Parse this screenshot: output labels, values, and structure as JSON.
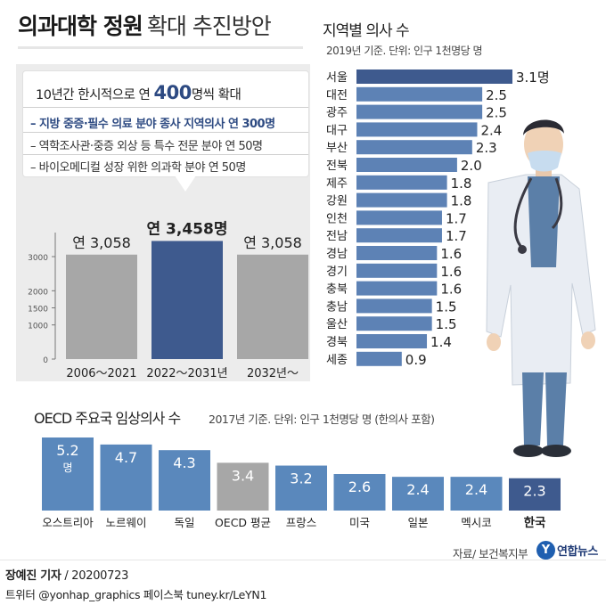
{
  "title": {
    "bold": "의과대학 정원",
    "normal": "확대 추진방안"
  },
  "callout": {
    "head_pre": "10년간 한시적으로 연 ",
    "head_num": "400",
    "head_post": "명씩 확대",
    "items": [
      "– 지방 중증·필수 의료 분야 종사 지역의사 연 300명",
      "– 역학조사관·중증 외상 등 특수 전문 분야 연 50명",
      "– 바이오메디컬 성장 위한 의과학 분야 연 50명"
    ]
  },
  "regional": {
    "title": "지역별 의사 수",
    "subtitle": "2019년 기준. 단위: 인구 1천명당 명"
  },
  "oecd": {
    "title": "OECD 주요국 임상의사 수",
    "subtitle": "2017년 기준. 단위: 인구 1천명당 명 (한의사 포함)"
  },
  "source": "자료/ 보건복지부",
  "logo": {
    "mark": "Y",
    "text": "연합뉴스"
  },
  "reporter": {
    "name": "장예진 기자",
    "date": " / 20200723"
  },
  "sns": "트위터 @yonhap_graphics  페이스북 tuney.kr/LeYN1",
  "colors": {
    "highlight": "#3e5a8e",
    "gray": "#a7a7a7",
    "blue": "#5a88bc",
    "bar_light": "#5d82b5"
  },
  "chart_data": [
    {
      "type": "bar",
      "categories": [
        "2006～2021",
        "2022～2031년",
        "2032년～"
      ],
      "values": [
        3058,
        3458,
        3058
      ],
      "value_labels": [
        "연 3,058",
        "연 3,458명",
        "연 3,058"
      ],
      "yticks": [
        0,
        1000,
        1500,
        2000,
        3000
      ],
      "ylim": [
        0,
        3600
      ],
      "highlight_index": 1
    },
    {
      "type": "bar",
      "orientation": "horizontal",
      "categories": [
        "서울",
        "대전",
        "광주",
        "대구",
        "부산",
        "전북",
        "제주",
        "강원",
        "인천",
        "전남",
        "경남",
        "경기",
        "충북",
        "충남",
        "울산",
        "경북",
        "세종"
      ],
      "values": [
        3.1,
        2.5,
        2.5,
        2.4,
        2.3,
        2.0,
        1.8,
        1.8,
        1.7,
        1.7,
        1.6,
        1.6,
        1.6,
        1.5,
        1.5,
        1.4,
        0.9
      ],
      "value_labels": [
        "3.1명",
        "2.5",
        "2.5",
        "2.4",
        "2.3",
        "2.0",
        "1.8",
        "1.8",
        "1.7",
        "1.7",
        "1.6",
        "1.6",
        "1.6",
        "1.5",
        "1.5",
        "1.4",
        "0.9"
      ],
      "highlight_index": 0
    },
    {
      "type": "bar",
      "categories": [
        "오스트리아",
        "노르웨이",
        "독일",
        "OECD 평균",
        "프랑스",
        "미국",
        "일본",
        "멕시코",
        "한국"
      ],
      "values": [
        5.2,
        4.7,
        4.3,
        3.4,
        3.2,
        2.6,
        2.4,
        2.4,
        2.3
      ],
      "value_labels": [
        "5.2",
        "4.7",
        "4.3",
        "3.4",
        "3.2",
        "2.6",
        "2.4",
        "2.4",
        "2.3"
      ],
      "unit_label": "명",
      "gray_index": 3,
      "dark_index": 8
    }
  ]
}
